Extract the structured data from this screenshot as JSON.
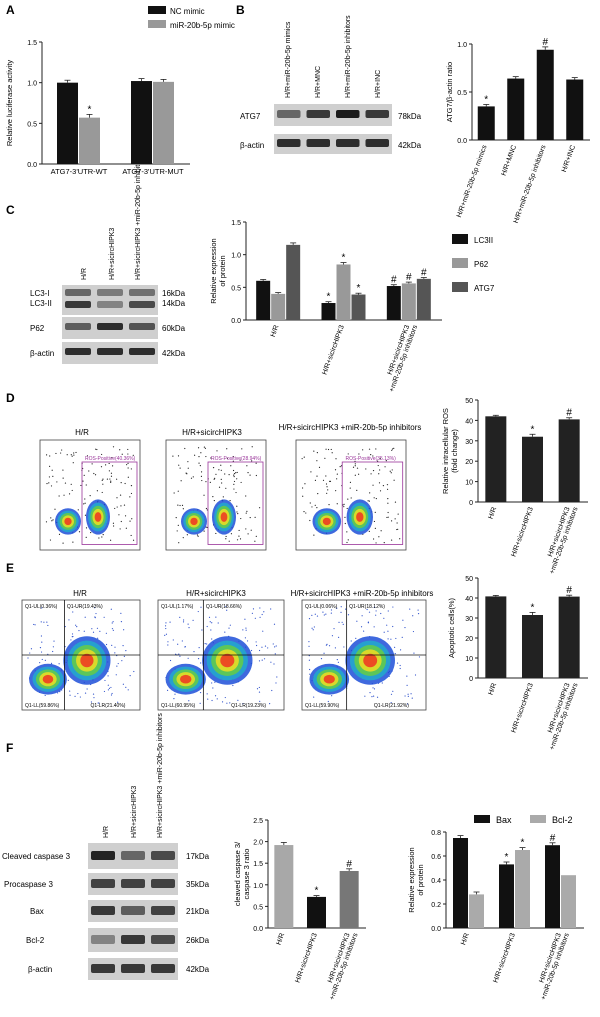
{
  "panels": {
    "A": {
      "letter": "A",
      "ylabel": "Relative luciferase activity",
      "yticks": [
        "0.0",
        "0.5",
        "1.0",
        "1.5"
      ],
      "categories": [
        "ATG7-3'UTR-WT",
        "ATG7-3'UTR-MUT"
      ],
      "legend": [
        "NC mimic",
        "miR-20b-5p mimic"
      ],
      "colors": [
        "#111111",
        "#999999"
      ]
    },
    "B": {
      "letter": "B",
      "lanes": [
        "H/R+miR-20b-5p mimics",
        "H/R+MNC",
        "H/R+miR-20b-5p inhibitors",
        "H/R+INC"
      ],
      "rows": [
        {
          "name": "ATG7",
          "kda": "78kDa"
        },
        {
          "name": "β-actin",
          "kda": "42kDa"
        }
      ],
      "ylabel": "ATG7/β-actin ratio",
      "yticks": [
        "0.0",
        "0.5",
        "1.0"
      ],
      "categories": [
        "H/R+miR-20b-5p mimics",
        "H/R+MNC",
        "H/R+miR-20b-5p inhibitors",
        "H/R+INC"
      ]
    },
    "C": {
      "letter": "C",
      "lanes": [
        "H/R",
        "H/R+sicircHIPK3",
        "H/R+sicircHIPK3 +miR-20b-5p inhibitors"
      ],
      "rows": [
        {
          "name": "LC3-I",
          "kda": "16kDa"
        },
        {
          "name": "LC3-II",
          "kda": "14kDa"
        },
        {
          "name": "P62",
          "kda": "60kDa"
        },
        {
          "name": "β-actin",
          "kda": "42kDa"
        }
      ],
      "ylabel": "Relative expression of protein",
      "yticks": [
        "0.0",
        "0.5",
        "1.0",
        "1.5"
      ],
      "categories": [
        "H/R",
        "H/R+sicircHIPK3",
        "H/R+sicircHIPK3 +miR-20b-5p inhibitors"
      ],
      "legend": [
        "LC3II",
        "P62",
        "ATG7"
      ],
      "colors": [
        "#111111",
        "#999999",
        "#555555"
      ]
    },
    "D": {
      "letter": "D",
      "flow_titles": [
        "H/R",
        "H/R+sicircHIPK3",
        "H/R+sicircHIPK3 +miR-20b-5p inhibitors"
      ],
      "gate_labels": [
        "ROS-Positive(40.36%)",
        "ROS-Positive(28.94%)",
        "ROS-Positive(35.13%)"
      ],
      "ylabel": "Relative intracellular ROS (fold change)",
      "yticks": [
        "0",
        "10",
        "20",
        "30",
        "40",
        "50"
      ],
      "categories": [
        "H/R",
        "H/R+sicircHIPK3",
        "H/R+sicircHIPK3 +miR-20b-5p inhibitors"
      ]
    },
    "E": {
      "letter": "E",
      "flow_titles": [
        "H/R",
        "H/R+sicircHIPK3",
        "H/R+sicircHIPK3 +miR-20b-5p inhibitors"
      ],
      "quadrants": [
        [
          "Q1-UL(0.36%)",
          "Q1-UR(19.43%)",
          "Q1-LL(59.86%)",
          "Q1-LR(21.40%)"
        ],
        [
          "Q1-UL(1.17%)",
          "Q1-UR(18.66%)",
          "Q1-LL(60.95%)",
          "Q1-LR(19.23%)"
        ],
        [
          "Q1-UL(0.06%)",
          "Q1-UR(18.12%)",
          "Q1-LL(59.90%)",
          "Q1-LR(21.92%)"
        ]
      ],
      "ylabel": "Apoptotic cells(%)",
      "yticks": [
        "0",
        "10",
        "20",
        "30",
        "40",
        "50"
      ],
      "categories": [
        "H/R",
        "H/R+sicircHIPK3",
        "H/R+sicircHIPK3 +miR-20b-5p inhibitors"
      ]
    },
    "F": {
      "letter": "F",
      "lanes": [
        "H/R",
        "H/R+sicircHIPK3",
        "H/R+sicircHIPK3 +miR-20b-5p inhibitors"
      ],
      "rows": [
        {
          "name": "Cleaved caspase 3",
          "kda": "17kDa"
        },
        {
          "name": "Procaspase 3",
          "kda": "35kDa"
        },
        {
          "name": "Bax",
          "kda": "21kDa"
        },
        {
          "name": "Bcl-2",
          "kda": "26kDa"
        },
        {
          "name": "β-actin",
          "kda": "42kDa"
        }
      ],
      "ylabel1": "cleaved caspase 3/ caspase 3 ratio",
      "yticks1": [
        "0.0",
        "0.5",
        "1.0",
        "1.5",
        "2.0",
        "2.5"
      ],
      "ylabel2": "Relative expression of protein",
      "yticks2": [
        "0.0",
        "0.2",
        "0.4",
        "0.6",
        "0.8"
      ],
      "categories": [
        "H/R",
        "H/R+sicircHIPK3",
        "H/R+sicircHIPK3 +miR-20b-5p inhibitors"
      ],
      "legend": [
        "Bax",
        "Bcl-2"
      ],
      "colors": [
        "#111111",
        "#aaaaaa"
      ]
    }
  },
  "chart_data": [
    {
      "id": "A",
      "type": "bar",
      "categories": [
        "ATG7-3'UTR-WT",
        "ATG7-3'UTR-MUT"
      ],
      "ylim": [
        0,
        1.5
      ],
      "series": [
        {
          "name": "NC mimic",
          "values": [
            1.0,
            1.02
          ],
          "errors": [
            0.03,
            0.03
          ],
          "marks": [
            "",
            ""
          ]
        },
        {
          "name": "miR-20b-5p mimic",
          "values": [
            0.57,
            1.01
          ],
          "errors": [
            0.04,
            0.03
          ],
          "marks": [
            "*",
            ""
          ]
        }
      ]
    },
    {
      "id": "B",
      "type": "bar",
      "categories": [
        "H/R+miR-20b-5p mimics",
        "H/R+MNC",
        "H/R+miR-20b-5p inhibitors",
        "H/R+INC"
      ],
      "ylim": [
        0,
        1.0
      ],
      "series": [
        {
          "name": "",
          "values": [
            0.35,
            0.64,
            0.94,
            0.63
          ],
          "errors": [
            0.02,
            0.02,
            0.03,
            0.02
          ],
          "marks": [
            "*",
            "",
            "#",
            ""
          ]
        }
      ]
    },
    {
      "id": "C",
      "type": "bar",
      "categories": [
        "H/R",
        "H/R+sicircHIPK3",
        "H/R+sicircHIPK3 +miR-20b-5p inhibitors"
      ],
      "ylim": [
        0,
        1.5
      ],
      "series": [
        {
          "name": "LC3II",
          "values": [
            0.6,
            0.26,
            0.52
          ],
          "errors": [
            0.02,
            0.02,
            0.02
          ],
          "marks": [
            "",
            "*",
            "#"
          ]
        },
        {
          "name": "P62",
          "values": [
            0.4,
            0.85,
            0.56
          ],
          "errors": [
            0.02,
            0.03,
            0.02
          ],
          "marks": [
            "",
            "*",
            "#"
          ]
        },
        {
          "name": "ATG7",
          "values": [
            1.15,
            0.39,
            0.63
          ],
          "errors": [
            0.03,
            0.02,
            0.02
          ],
          "marks": [
            "",
            "*",
            "#"
          ]
        }
      ]
    },
    {
      "id": "D",
      "type": "bar",
      "categories": [
        "H/R",
        "H/R+sicircHIPK3",
        "H/R+sicircHIPK3 +miR-20b-5p inhibitors"
      ],
      "ylim": [
        0,
        50
      ],
      "series": [
        {
          "name": "",
          "values": [
            42,
            32,
            40.5
          ],
          "errors": [
            0.5,
            1.2,
            0.8
          ],
          "marks": [
            "",
            "*",
            "#"
          ]
        }
      ]
    },
    {
      "id": "E",
      "type": "bar",
      "categories": [
        "H/R",
        "H/R+sicircHIPK3",
        "H/R+sicircHIPK3 +miR-20b-5p inhibitors"
      ],
      "ylim": [
        0,
        50
      ],
      "series": [
        {
          "name": "",
          "values": [
            40.8,
            31.5,
            40.7
          ],
          "errors": [
            0.5,
            1.3,
            0.7
          ],
          "marks": [
            "",
            "*",
            "#"
          ]
        }
      ]
    },
    {
      "id": "F1",
      "type": "bar",
      "categories": [
        "H/R",
        "H/R+sicircHIPK3",
        "H/R+sicircHIPK3 +miR-20b-5p inhibitors"
      ],
      "ylim": [
        0,
        2.5
      ],
      "series": [
        {
          "name": "",
          "values": [
            1.92,
            0.72,
            1.32
          ],
          "errors": [
            0.06,
            0.03,
            0.05
          ],
          "marks": [
            "",
            "*",
            "#"
          ]
        }
      ]
    },
    {
      "id": "F2",
      "type": "bar",
      "categories": [
        "H/R",
        "H/R+sicircHIPK3",
        "H/R+sicircHIPK3 +miR-20b-5p inhibitors"
      ],
      "ylim": [
        0,
        0.8
      ],
      "series": [
        {
          "name": "Bax",
          "values": [
            0.75,
            0.53,
            0.69
          ],
          "errors": [
            0.02,
            0.02,
            0.02
          ],
          "marks": [
            "",
            "*",
            "#"
          ]
        },
        {
          "name": "Bcl-2",
          "values": [
            0.28,
            0.65,
            0.44
          ],
          "errors": [
            0.02,
            0.02,
            0
          ],
          "marks": [
            "",
            "*",
            ""
          ]
        }
      ]
    }
  ]
}
